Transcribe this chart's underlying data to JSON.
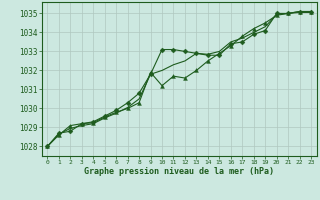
{
  "title": "Graphe pression niveau de la mer (hPa)",
  "bg_color": "#cce8e0",
  "grid_color": "#b0c8c0",
  "line_color": "#1e5c1e",
  "xlim": [
    -0.5,
    23.5
  ],
  "ylim": [
    1027.5,
    1035.6
  ],
  "yticks": [
    1028,
    1029,
    1030,
    1031,
    1032,
    1033,
    1034,
    1035
  ],
  "xticks": [
    0,
    1,
    2,
    3,
    4,
    5,
    6,
    7,
    8,
    9,
    10,
    11,
    12,
    13,
    14,
    15,
    16,
    17,
    18,
    19,
    20,
    21,
    22,
    23
  ],
  "series1_x": [
    0,
    1,
    2,
    3,
    4,
    5,
    6,
    7,
    8,
    9,
    10,
    11,
    12,
    13,
    14,
    15,
    16,
    17,
    18,
    19,
    20,
    21,
    22,
    23
  ],
  "series1_y": [
    1028.0,
    1028.7,
    1028.8,
    1029.2,
    1029.3,
    1029.6,
    1029.9,
    1030.3,
    1030.8,
    1031.8,
    1033.1,
    1033.1,
    1033.0,
    1032.9,
    1032.8,
    1032.8,
    1033.4,
    1033.5,
    1033.9,
    1034.1,
    1035.0,
    1035.0,
    1035.1,
    1035.1
  ],
  "series2_x": [
    0,
    1,
    2,
    3,
    4,
    5,
    6,
    7,
    8,
    9,
    10,
    11,
    12,
    13,
    14,
    15,
    16,
    17,
    18,
    19,
    20,
    21,
    22,
    23
  ],
  "series2_y": [
    1028.0,
    1028.6,
    1029.1,
    1029.2,
    1029.25,
    1029.55,
    1029.8,
    1030.0,
    1030.3,
    1031.9,
    1031.2,
    1031.7,
    1031.6,
    1032.0,
    1032.5,
    1032.9,
    1033.3,
    1033.8,
    1034.2,
    1034.5,
    1034.9,
    1035.0,
    1035.05,
    1035.05
  ],
  "series3_x": [
    0,
    1,
    2,
    3,
    4,
    5,
    6,
    7,
    8,
    9,
    10,
    11,
    12,
    13,
    14,
    15,
    16,
    17,
    18,
    19,
    20,
    21,
    22,
    23
  ],
  "series3_y": [
    1028.0,
    1028.65,
    1028.95,
    1029.1,
    1029.2,
    1029.5,
    1029.75,
    1030.05,
    1030.5,
    1031.8,
    1032.0,
    1032.3,
    1032.5,
    1032.9,
    1032.85,
    1033.0,
    1033.5,
    1033.7,
    1034.0,
    1034.3,
    1034.95,
    1035.0,
    1035.1,
    1035.1
  ]
}
